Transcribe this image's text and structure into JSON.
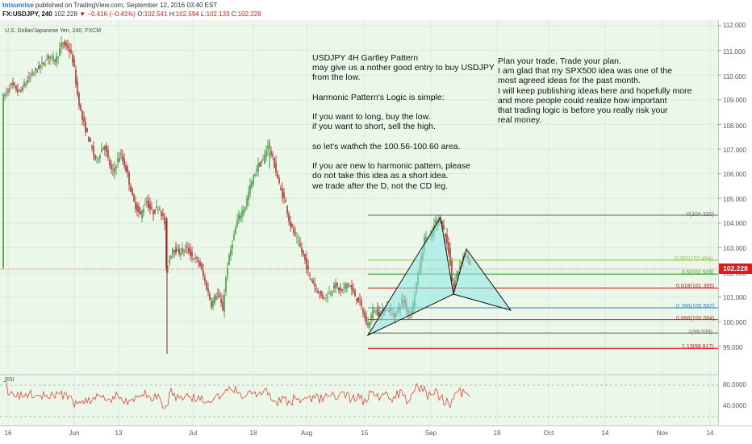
{
  "header": {
    "author": "tntsunrise",
    "published_text": "published on TradingView.com, September 12, 2016 03:40 EST",
    "symbol": "FX:USDJPY, 240",
    "last": "102.228",
    "change": "▼ −0.416 (−0.41%)",
    "o_label": "O:",
    "o": "102.541",
    "h_label": "H:",
    "h": "102.594",
    "l_label": "L:",
    "l": "102.133",
    "c_label": "C:",
    "c": "102.228"
  },
  "series_name": "U.S. Dollar/Japanese Yen, 240, FXCM",
  "price_axis": [
    "112.000",
    "111.000",
    "110.000",
    "109.000",
    "108.000",
    "107.000",
    "106.000",
    "105.000",
    "104.000",
    "103.000",
    "102.000",
    "101.000",
    "100.000",
    "99.000"
  ],
  "time_axis": [
    "16",
    "Jun",
    "13",
    "Jul",
    "18",
    "Aug",
    "15",
    "Sep",
    "19",
    "Oct",
    "14",
    "Nov",
    "14"
  ],
  "current_price": "102.228",
  "note_left": "USDJPY 4H Gartley Pattern\nmay give us a nother good entry to buy USDJPY\nfrom the low.\n\nHarmonic Pattern's Logic is simple:\n\nIf you want to long, buy the low.\nif you want to short, sell the high.\n\nso let's wathch the 100.56-100.60 area.\n\nIf you are new to harmonic pattern, please\ndo not take this idea as a short idea.\nwe trade after the D, not the CD leg.",
  "note_right": "Plan your trade, Trade your plan.\nI am glad that my SPX500 idea was one of the\nmost agreed ideas for the past month.\nI will keep publishing ideas here and hopefully more\nand more people could realize how important\nthat trading logic is before you really risk your\nreal money.",
  "fib_levels": [
    {
      "label": "0(104.320)",
      "value": 104.32,
      "color": "#666666"
    },
    {
      "label": "0.382(102.494)",
      "value": 102.494,
      "color": "#8ac43f"
    },
    {
      "label": "0.5(101.929)",
      "value": 101.929,
      "color": "#2fa52f"
    },
    {
      "label": "0.618(101.365)",
      "value": 101.365,
      "color": "#d42020"
    },
    {
      "label": "0.786(100.562)",
      "value": 100.562,
      "color": "#2a7fd0"
    },
    {
      "label": "0.886(100.084)",
      "value": 100.084,
      "color": "#b83030"
    },
    {
      "label": "1(99.539)",
      "value": 99.539,
      "color": "#666666"
    },
    {
      "label": "1.13(98.917)",
      "value": 98.917,
      "color": "#d42020"
    }
  ],
  "rsi": {
    "label": "RSI",
    "axis": [
      "80.0000",
      "40.0000"
    ]
  },
  "colors": {
    "up": "#2e8b2e",
    "down": "#a21c1c",
    "pane": "#ebf8e9",
    "rsi": "#e0443a",
    "pattern_fill": "#8ee6e8"
  }
}
